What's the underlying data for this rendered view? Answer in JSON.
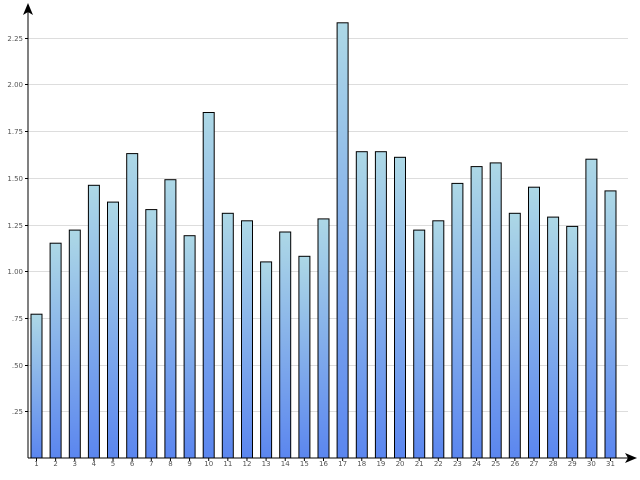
{
  "chart_data": {
    "type": "bar",
    "title": "",
    "xlabel": "",
    "ylabel": "",
    "categories": [
      "1",
      "2",
      "3",
      "4",
      "5",
      "6",
      "7",
      "8",
      "9",
      "10",
      "11",
      "12",
      "13",
      "14",
      "15",
      "16",
      "17",
      "18",
      "19",
      "20",
      "21",
      "22",
      "23",
      "24",
      "25",
      "26",
      "27",
      "28",
      "29",
      "30",
      "31"
    ],
    "values": [
      0.77,
      1.15,
      1.22,
      1.46,
      1.37,
      1.63,
      1.33,
      1.49,
      1.19,
      1.85,
      1.31,
      1.27,
      1.05,
      1.21,
      1.08,
      1.28,
      2.33,
      1.64,
      1.64,
      1.61,
      1.22,
      1.27,
      1.47,
      1.56,
      1.58,
      1.31,
      1.45,
      1.29,
      1.24,
      1.6,
      1.43
    ],
    "y_ticks": [
      0.25,
      0.5,
      0.75,
      1.0,
      1.25,
      1.5,
      1.75,
      2.0,
      2.25
    ],
    "y_tick_labels": [
      ".25",
      ".50",
      ".75",
      "1.00",
      "1.25",
      "1.50",
      "1.75",
      "2.00",
      "2.25"
    ],
    "ylim": [
      0,
      2.42
    ],
    "grid": true,
    "legend": "none",
    "colors": {
      "bar_top": "#add8e6",
      "bar_bottom": "#5b86ef",
      "grid": "#dddddd",
      "axis": "#000000"
    }
  }
}
